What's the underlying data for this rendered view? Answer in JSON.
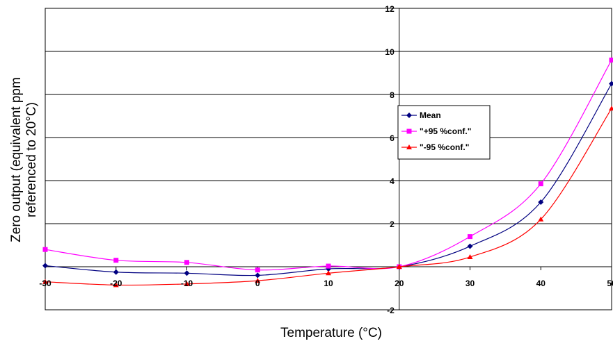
{
  "chart_data": {
    "type": "line",
    "xlabel": "Temperature (°C)",
    "ylabel_line1": "Zero output (equivalent ppm",
    "ylabel_line2": "referenced to 20°C)",
    "xlim": [
      -30,
      50
    ],
    "ylim": [
      -2,
      12
    ],
    "x_ticks": [
      -30,
      -20,
      -10,
      0,
      10,
      20,
      30,
      40,
      50
    ],
    "y_ticks": [
      -2,
      0,
      2,
      4,
      6,
      8,
      10,
      12
    ],
    "y_gridlines": [
      2,
      4,
      6,
      8,
      10
    ],
    "legend_position": "right-center",
    "x": [
      -30,
      -20,
      -10,
      0,
      10,
      20,
      30,
      40,
      50
    ],
    "series": [
      {
        "name": "Mean",
        "color": "#000080",
        "marker": "diamond",
        "values": [
          0.05,
          -0.25,
          -0.3,
          -0.4,
          -0.1,
          0,
          0.95,
          3.0,
          8.5
        ]
      },
      {
        "name": "\"+95 %conf.\"",
        "color": "#ff00ff",
        "marker": "square",
        "values": [
          0.8,
          0.3,
          0.2,
          -0.15,
          0.03,
          0,
          1.4,
          3.85,
          9.6
        ]
      },
      {
        "name": "\"-95 %conf.\"",
        "color": "#ff0000",
        "marker": "triangle",
        "values": [
          -0.7,
          -0.85,
          -0.8,
          -0.65,
          -0.3,
          0,
          0.45,
          2.2,
          7.35
        ]
      }
    ]
  }
}
